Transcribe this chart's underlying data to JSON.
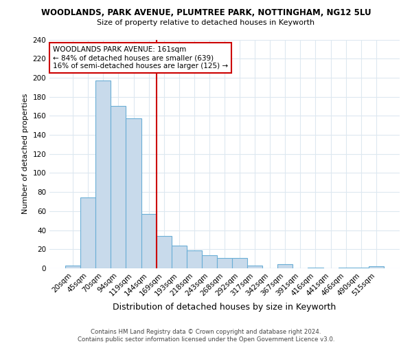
{
  "title1": "WOODLANDS, PARK AVENUE, PLUMTREE PARK, NOTTINGHAM, NG12 5LU",
  "title2": "Size of property relative to detached houses in Keyworth",
  "xlabel": "Distribution of detached houses by size in Keyworth",
  "ylabel": "Number of detached properties",
  "categories": [
    "20sqm",
    "45sqm",
    "70sqm",
    "94sqm",
    "119sqm",
    "144sqm",
    "169sqm",
    "193sqm",
    "218sqm",
    "243sqm",
    "268sqm",
    "292sqm",
    "317sqm",
    "342sqm",
    "367sqm",
    "391sqm",
    "416sqm",
    "441sqm",
    "466sqm",
    "490sqm",
    "515sqm"
  ],
  "values": [
    3,
    74,
    197,
    170,
    157,
    57,
    34,
    24,
    19,
    14,
    11,
    11,
    3,
    0,
    4,
    0,
    1,
    0,
    1,
    1,
    2
  ],
  "bar_color": "#c8daeb",
  "bar_edge_color": "#6aaed6",
  "vline_x": 5.5,
  "vline_color": "#cc0000",
  "annotation_text": "WOODLANDS PARK AVENUE: 161sqm\n← 84% of detached houses are smaller (639)\n16% of semi-detached houses are larger (125) →",
  "annotation_box_color": "white",
  "annotation_box_edge": "#cc0000",
  "ylim": [
    0,
    240
  ],
  "yticks": [
    0,
    20,
    40,
    60,
    80,
    100,
    120,
    140,
    160,
    180,
    200,
    220,
    240
  ],
  "footer": "Contains HM Land Registry data © Crown copyright and database right 2024.\nContains public sector information licensed under the Open Government Licence v3.0.",
  "bg_color": "#ffffff",
  "grid_color": "#dde8f0"
}
